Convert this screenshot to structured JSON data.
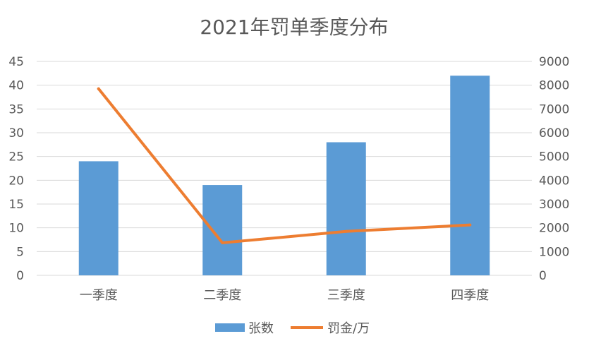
{
  "chart_data": {
    "type": "bar",
    "title": "2021年罚单季度分布",
    "categories": [
      "一季度",
      "二季度",
      "三季度",
      "四季度"
    ],
    "series": [
      {
        "name": "张数",
        "type": "bar",
        "axis": "left",
        "values": [
          24,
          19,
          28,
          42
        ],
        "color": "#5b9bd5"
      },
      {
        "name": "罚金/万",
        "type": "line",
        "axis": "right",
        "values": [
          7850,
          1370,
          1850,
          2120
        ],
        "color": "#ed7d31"
      }
    ],
    "y_left": {
      "min": 0,
      "max": 45,
      "ticks": [
        0,
        5,
        10,
        15,
        20,
        25,
        30,
        35,
        40,
        45
      ]
    },
    "y_right": {
      "min": 0,
      "max": 9000,
      "ticks": [
        0,
        1000,
        2000,
        3000,
        4000,
        5000,
        6000,
        7000,
        8000,
        9000
      ]
    },
    "grid": true,
    "legend": "bottom"
  }
}
